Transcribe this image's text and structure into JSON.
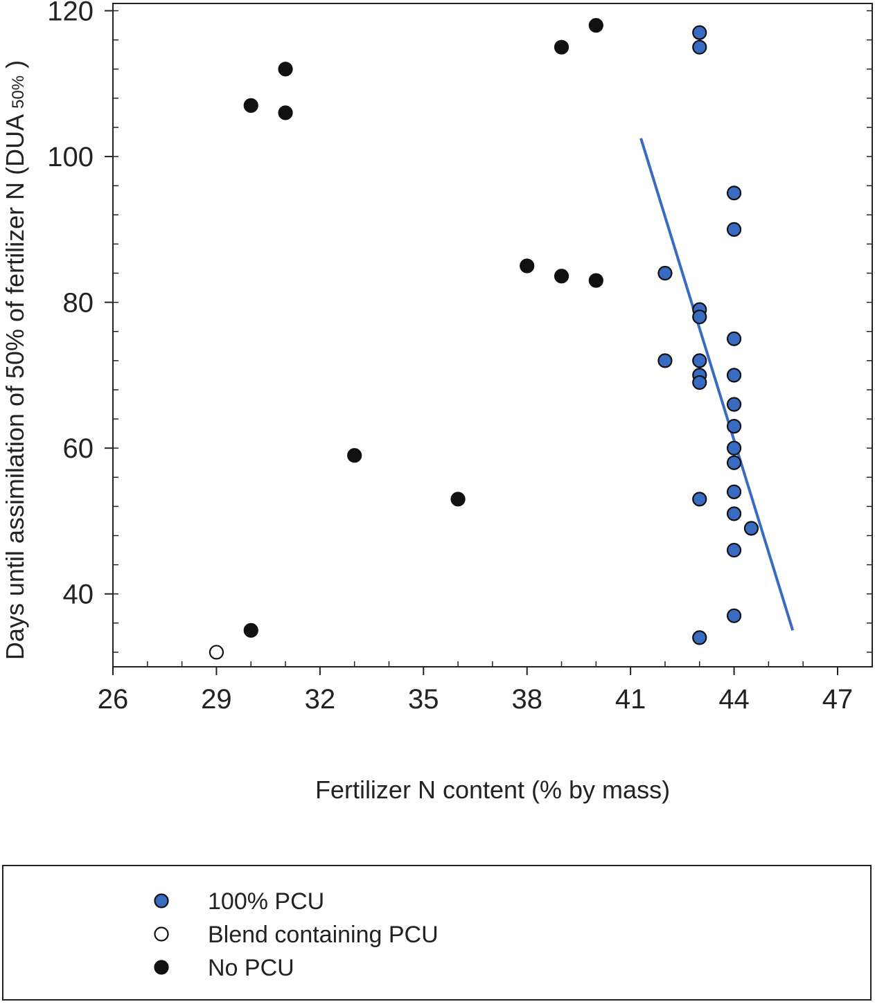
{
  "chart_data": {
    "type": "scatter",
    "title": "",
    "xlabel": "Fertilizer N content (% by mass)",
    "ylabel_main": "Days until assimilation of 50% of fertilizer N (DUA",
    "ylabel_sub": "50%",
    "ylabel_close": ")",
    "xlim": [
      26,
      47
    ],
    "ylim": [
      30,
      121
    ],
    "xticks": [
      26,
      29,
      32,
      35,
      38,
      41,
      44,
      47
    ],
    "yticks": [
      40,
      60,
      80,
      100,
      120
    ],
    "grid": false,
    "legend_position": "bottom",
    "series": [
      {
        "name": "100% PCU",
        "marker": "filled-circle",
        "color": "#3a6bc2",
        "points": [
          [
            43,
            117
          ],
          [
            43,
            115
          ],
          [
            42,
            84
          ],
          [
            43,
            79
          ],
          [
            43,
            78
          ],
          [
            43,
            72
          ],
          [
            42,
            72
          ],
          [
            43,
            70
          ],
          [
            43,
            69
          ],
          [
            43,
            53
          ],
          [
            43,
            34
          ],
          [
            44,
            95
          ],
          [
            44,
            90
          ],
          [
            44,
            75
          ],
          [
            44,
            70
          ],
          [
            44,
            66
          ],
          [
            44,
            63
          ],
          [
            44,
            60
          ],
          [
            44,
            58
          ],
          [
            44,
            54
          ],
          [
            44,
            51
          ],
          [
            44.5,
            49
          ],
          [
            44,
            46
          ],
          [
            44,
            37
          ]
        ]
      },
      {
        "name": "Blend containing PCU",
        "marker": "open-circle",
        "color": "#ffffff",
        "points": [
          [
            29,
            32
          ]
        ]
      },
      {
        "name": "No PCU",
        "marker": "filled-circle",
        "color": "#111111",
        "points": [
          [
            30,
            107
          ],
          [
            31,
            112
          ],
          [
            31,
            106
          ],
          [
            39,
            115
          ],
          [
            40,
            118
          ],
          [
            38,
            85
          ],
          [
            39,
            83.6
          ],
          [
            40,
            83
          ],
          [
            33,
            59
          ],
          [
            36,
            53
          ],
          [
            30,
            35
          ]
        ]
      }
    ],
    "trendline": {
      "color": "#3a6bc2",
      "from": [
        41.3,
        102.5
      ],
      "to": [
        45.7,
        35
      ]
    }
  }
}
